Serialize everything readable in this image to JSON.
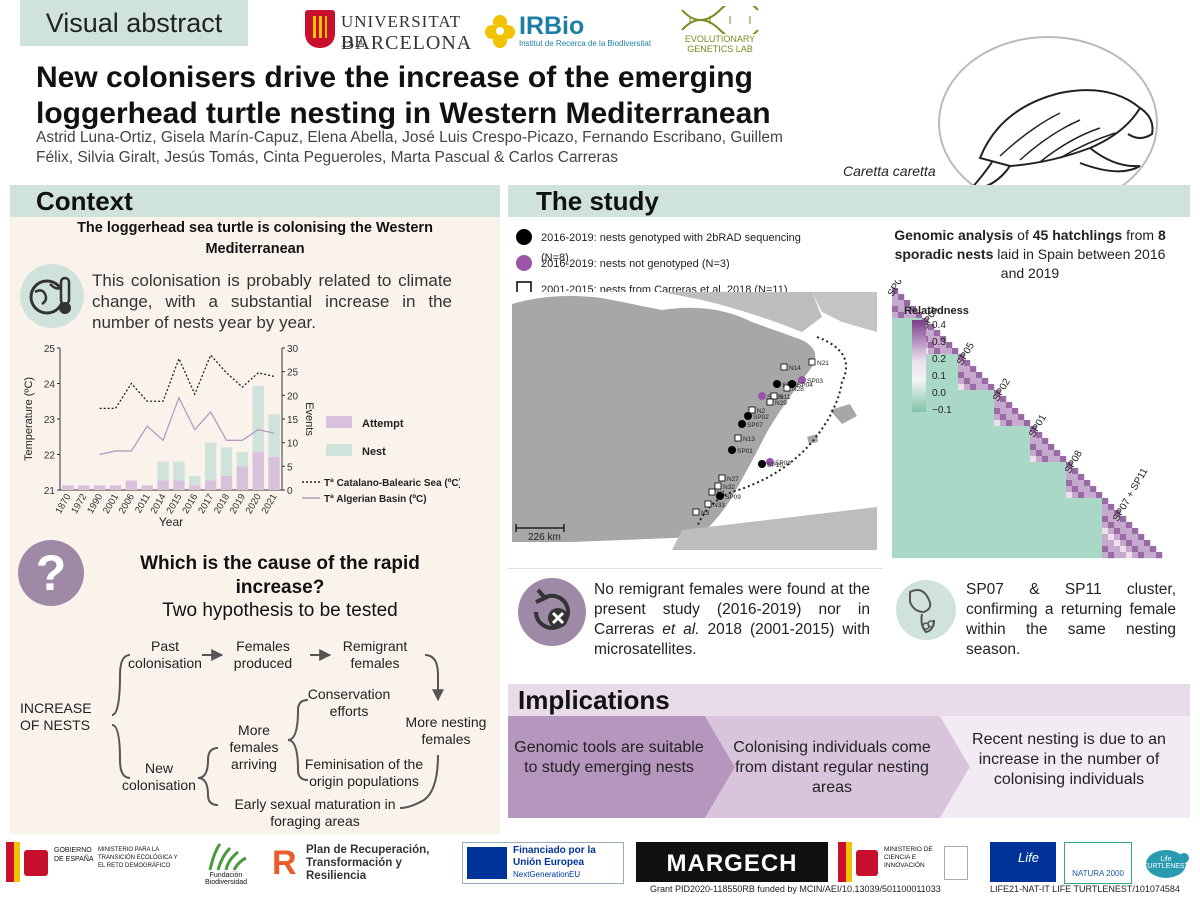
{
  "header": {
    "tag": "Visual abstract",
    "logo_ub_line1": "UNIVERSITAT DE",
    "logo_ub_line2": "BARCELONA",
    "logo_irbio": "IRBio",
    "logo_irbio_sub": "Institut de Recerca de la Biodiversitat",
    "logo_egl": "EVOLUTIONARY GENETICS LAB",
    "title": "New colonisers drive the increase of the emerging loggerhead turtle nesting in Western Mediterranean",
    "authors": "Astrid Luna-Ortiz, Gisela Marín-Capuz, Elena Abella, José Luis Crespo-Picazo, Fernando Escribano, Guillem Félix, Silvia Giralt, Jesús Tomás, Cinta Pegueroles, Marta Pascual & Carlos Carreras",
    "species": "Caretta caretta",
    "turtle_icon": "turtle-drawing"
  },
  "context": {
    "heading": "Context",
    "subtitle": "The loggerhead sea turtle is colonising the Western Mediterranean",
    "climate_text": "This colonisation is probably related to climate change, with a substantial increase in the number of nests year by year.",
    "climate_icon": "globe-thermometer-icon",
    "question_icon": "question-mark-icon",
    "question": "Which is the cause of the rapid increase?",
    "question_sub": "Two hypothesis to be tested"
  },
  "chart_data": {
    "type": "bar",
    "xlabel": "Year",
    "ylabel": "Temperature (ºC)",
    "y2label": "Events",
    "categories": [
      "1870",
      "1972",
      "1990",
      "2001",
      "2006",
      "2011",
      "2014",
      "2015",
      "2016",
      "2017",
      "2018",
      "2019",
      "2020",
      "2021"
    ],
    "series": [
      {
        "name": "Attempt",
        "values": [
          1,
          1,
          1,
          1,
          2,
          1,
          2,
          2,
          1,
          2,
          3,
          5,
          8,
          7
        ],
        "color": "#d9c0dc"
      },
      {
        "name": "Nest",
        "values": [
          0,
          0,
          0,
          0,
          0,
          0,
          4,
          4,
          2,
          8,
          6,
          3,
          14,
          9
        ],
        "color": "#cfe3dc"
      }
    ],
    "lines": [
      {
        "name": "Tª Catalano-Balearic Sea (ºC)",
        "style": "dotted",
        "color": "#222222",
        "x": [
          "1990",
          "2001",
          "2006",
          "2011",
          "2014",
          "2015",
          "2016",
          "2017",
          "2018",
          "2019",
          "2020",
          "2021"
        ],
        "values": [
          23.3,
          23.3,
          24.0,
          23.5,
          23.5,
          24.7,
          23.7,
          24.8,
          24.3,
          23.9,
          24.3,
          24.2
        ]
      },
      {
        "name": "Tª Algerian Basin (ºC)",
        "style": "solid",
        "color": "#b69bbd",
        "x": [
          "1990",
          "2001",
          "2006",
          "2011",
          "2014",
          "2015",
          "2016",
          "2017",
          "2018",
          "2019",
          "2020",
          "2021"
        ],
        "values": [
          22.0,
          22.1,
          22.1,
          22.8,
          22.4,
          23.6,
          22.7,
          23.2,
          22.4,
          22.4,
          22.7,
          22.6
        ]
      }
    ],
    "ylim": [
      21,
      25
    ],
    "y2lim": [
      0,
      30
    ],
    "yticks": [
      "21",
      "22",
      "23",
      "24",
      "25"
    ],
    "y2ticks": [
      "0",
      "5",
      "10",
      "15",
      "20",
      "25",
      "30"
    ],
    "legend": [
      "Attempt",
      "Nest"
    ],
    "line_legend": [
      "Tª Catalano-Balearic Sea (ºC)",
      "Tª Algerian Basin (ºC)"
    ]
  },
  "flow": {
    "increase": "INCREASE OF NESTS",
    "past": "Past colonisation",
    "females_produced": "Females produced",
    "remigrant": "Remigrant females",
    "new": "New colonisation",
    "conservation": "Conservation efforts",
    "more_arriving": "More females arriving",
    "feminisation": "Feminisation of the origin populations",
    "more_nesting": "More nesting females",
    "early": "Early sexual maturation in foraging areas"
  },
  "study": {
    "heading": "The study",
    "legend": [
      "2016-2019: nests genotyped with 2bRAD sequencing (N=8)",
      "2016-2019: nests not genotyped (N=3)",
      "2001-2015: nests from Carreras et al. 2018 (N=11)"
    ],
    "scale": "226 km",
    "map_labels": [
      "N14",
      "N21",
      "SP03",
      "SP06",
      "N28",
      "SP05",
      "N11",
      "N29",
      "SP04",
      "N2",
      "SP02",
      "SP07",
      "N13",
      "SP01",
      "SP08",
      "SP10",
      "N27",
      "N32",
      "N1",
      "SP09",
      "N33",
      "N3"
    ],
    "genomic_text_pre": "Genomic analysis",
    "genomic_text_mid1": "of",
    "genomic_text_b1": "45 hatchlings",
    "genomic_text_mid2": "from",
    "genomic_text_b2": "8 sporadic nests",
    "genomic_text_post": "laid in Spain between 2016 and 2019",
    "heatmap_title": "Relatedness",
    "heatmap_ticks": [
      "0.4",
      "0.3",
      "0.2",
      "0.1",
      "0.0",
      "−0.1"
    ],
    "heatmap_groups": [
      "SP09",
      "SP04",
      "SP05",
      "SP02",
      "SP01",
      "SP08",
      "SP07 + SP11"
    ],
    "remigrant_text_1": "No remigrant females were found at the present study (2016-2019) nor in Carreras",
    "remigrant_text_em": "et al.",
    "remigrant_text_2": "2018 (2001-2015) with microsatellites.",
    "remigrant_icon": "return-cross-icon",
    "cluster_text": "SP07 & SP11 cluster, confirming a returning female within the same nesting season.",
    "cluster_icon": "turtle-nest-icon"
  },
  "implications": {
    "heading": "Implications",
    "items": [
      "Genomic tools are suitable to study emerging nests",
      "Colonising individuals come from distant regular nesting areas",
      "Recent nesting is due to an increase in the number of colonising individuals"
    ]
  },
  "footer": {
    "gob_esp": "GOBIERNO DE ESPAÑA",
    "ministerio1": "MINISTERIO PARA LA TRANSICIÓN ECOLÓGICA Y EL RETO DEMOGRÁFICO",
    "fundacion": "Fundación Biodiversidad",
    "plan": "Plan de Recuperación, Transformación y Resiliencia",
    "eu": "Financiado por la Unión Europea",
    "eu_sub": "NextGenerationEU",
    "margech": "MARGECH",
    "ministerio2": "MINISTERIO DE CIENCIA E INNOVACIÓN",
    "life": "Life",
    "natura": "NATURA 2000",
    "turtlenest": "Life TURTLENEST",
    "grant1": "Grant PID2020-118550RB funded by MCIN/AEI/10.13039/501100011033",
    "grant2": "LIFE21-NAT-IT LIFE TURTLENEST/101074584"
  }
}
